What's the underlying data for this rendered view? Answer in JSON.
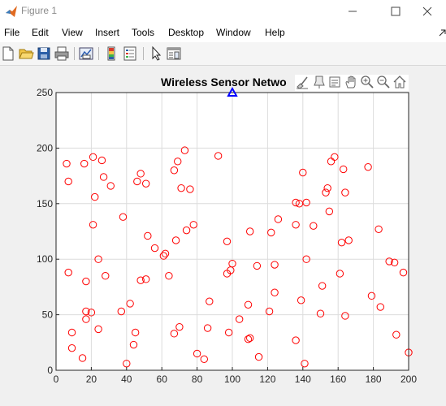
{
  "window": {
    "title": "Figure 1"
  },
  "menu": [
    "File",
    "Edit",
    "View",
    "Insert",
    "Tools",
    "Desktop",
    "Window",
    "Help"
  ],
  "toolbar_icons": [
    "new-figure-icon",
    "open-file-icon",
    "save-icon",
    "print-icon",
    "link-plot-icon",
    "insert-colorbar-icon",
    "insert-legend-icon",
    "edit-plot-icon",
    "property-inspector-icon"
  ],
  "axes_toolbar_icons": [
    "brush-icon",
    "data-tips-icon",
    "rotate-icon",
    "pan-icon",
    "zoom-in-icon",
    "zoom-out-icon",
    "home-icon"
  ],
  "chart_data": {
    "type": "scatter",
    "title": "Wireless Sensor Netwo",
    "xlabel": "",
    "ylabel": "",
    "xlim": [
      0,
      200
    ],
    "ylim": [
      0,
      250
    ],
    "xticks": [
      0,
      20,
      40,
      60,
      80,
      100,
      120,
      140,
      160,
      180,
      200
    ],
    "yticks": [
      0,
      50,
      100,
      150,
      200,
      250
    ],
    "grid": true,
    "marker_color": "#ff0000",
    "base_station": {
      "x": 100,
      "y": 250,
      "color": "#0000ff",
      "marker": "triangle"
    },
    "series": [
      {
        "marker": "circle",
        "points": [
          [
            6,
            186
          ],
          [
            7,
            170
          ],
          [
            7,
            88
          ],
          [
            9,
            34
          ],
          [
            9,
            20
          ],
          [
            15,
            11
          ],
          [
            16,
            186
          ],
          [
            17,
            80
          ],
          [
            17,
            46
          ],
          [
            17,
            53
          ],
          [
            20,
            52
          ],
          [
            21,
            192
          ],
          [
            21,
            131
          ],
          [
            22,
            156
          ],
          [
            24,
            100
          ],
          [
            24,
            37
          ],
          [
            26,
            189
          ],
          [
            27,
            174
          ],
          [
            28,
            85
          ],
          [
            31,
            166
          ],
          [
            37,
            53
          ],
          [
            38,
            138
          ],
          [
            40,
            6
          ],
          [
            42,
            60
          ],
          [
            44,
            23
          ],
          [
            45,
            34
          ],
          [
            46,
            170
          ],
          [
            48,
            177
          ],
          [
            48,
            81
          ],
          [
            51,
            168
          ],
          [
            51,
            82
          ],
          [
            52,
            121
          ],
          [
            56,
            110
          ],
          [
            61,
            103
          ],
          [
            62,
            105
          ],
          [
            64,
            85
          ],
          [
            67,
            180
          ],
          [
            67,
            33
          ],
          [
            68,
            117
          ],
          [
            69,
            188
          ],
          [
            70,
            39
          ],
          [
            71,
            164
          ],
          [
            73,
            198
          ],
          [
            74,
            126
          ],
          [
            76,
            163
          ],
          [
            78,
            131
          ],
          [
            80,
            15
          ],
          [
            84,
            10
          ],
          [
            86,
            38
          ],
          [
            87,
            62
          ],
          [
            92,
            193
          ],
          [
            97,
            116
          ],
          [
            97,
            87
          ],
          [
            98,
            34
          ],
          [
            99,
            90
          ],
          [
            100,
            96
          ],
          [
            104,
            46
          ],
          [
            109,
            28
          ],
          [
            109,
            59
          ],
          [
            110,
            29
          ],
          [
            110,
            125
          ],
          [
            114,
            94
          ],
          [
            115,
            12
          ],
          [
            121,
            53
          ],
          [
            122,
            124
          ],
          [
            124,
            95
          ],
          [
            124,
            70
          ],
          [
            126,
            136
          ],
          [
            136,
            151
          ],
          [
            136,
            131
          ],
          [
            136,
            27
          ],
          [
            138,
            150
          ],
          [
            139,
            63
          ],
          [
            140,
            178
          ],
          [
            141,
            6
          ],
          [
            142,
            151
          ],
          [
            142,
            100
          ],
          [
            146,
            130
          ],
          [
            150,
            51
          ],
          [
            151,
            76
          ],
          [
            153,
            160
          ],
          [
            154,
            164
          ],
          [
            155,
            143
          ],
          [
            156,
            188
          ],
          [
            158,
            192
          ],
          [
            161,
            87
          ],
          [
            162,
            115
          ],
          [
            163,
            181
          ],
          [
            164,
            49
          ],
          [
            164,
            160
          ],
          [
            166,
            117
          ],
          [
            177,
            183
          ],
          [
            179,
            67
          ],
          [
            183,
            127
          ],
          [
            184,
            57
          ],
          [
            189,
            98
          ],
          [
            192,
            97
          ],
          [
            193,
            32
          ],
          [
            197,
            88
          ],
          [
            200,
            16
          ]
        ]
      }
    ]
  }
}
